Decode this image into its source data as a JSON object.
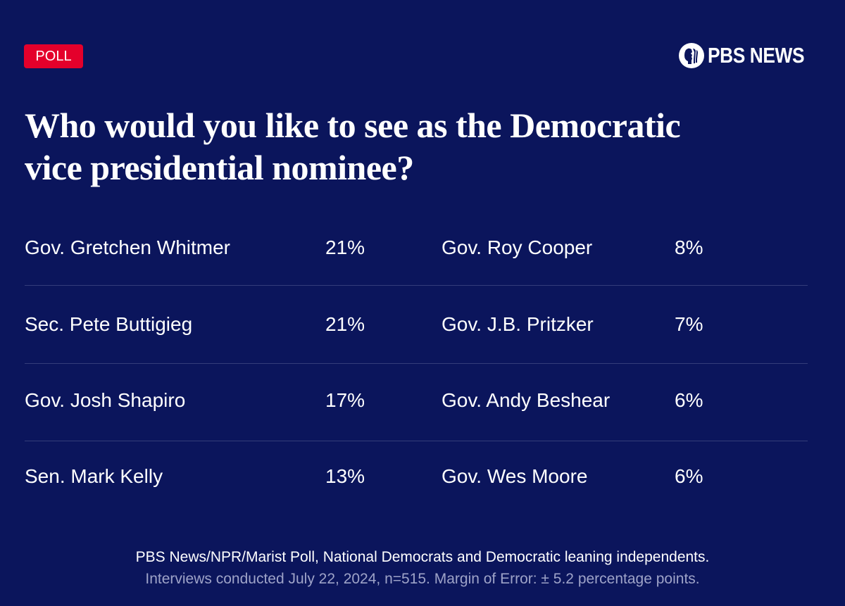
{
  "badge": "POLL",
  "brand": "PBS NEWS",
  "title_lines": [
    "Who would you like to see as the Democratic",
    "vice presidential nominee?"
  ],
  "chart_data": {
    "type": "table",
    "title": "Who would you like to see as the Democratic vice presidential nominee?",
    "rows": [
      {
        "name": "Gov. Gretchen Whitmer",
        "value": "21%"
      },
      {
        "name": "Sec. Pete Buttigieg",
        "value": "21%"
      },
      {
        "name": "Gov. Josh Shapiro",
        "value": "17%"
      },
      {
        "name": "Sen. Mark Kelly",
        "value": "13%"
      },
      {
        "name": "Gov. Roy Cooper",
        "value": "8%"
      },
      {
        "name": "Gov. J.B. Pritzker",
        "value": "7%"
      },
      {
        "name": "Gov. Andy Beshear",
        "value": "6%"
      },
      {
        "name": "Gov. Wes Moore",
        "value": "6%"
      }
    ]
  },
  "footer": {
    "source": "PBS News/NPR/Marist Poll, National Democrats and Democratic leaning independents.",
    "note": "Interviews conducted July 22, 2024, n=515. Margin of Error: ± 5.2 percentage points."
  },
  "colors": {
    "background": "#0b155c",
    "badge": "#e4002b",
    "divider": "#343d7a",
    "note": "#9ea3c8"
  }
}
